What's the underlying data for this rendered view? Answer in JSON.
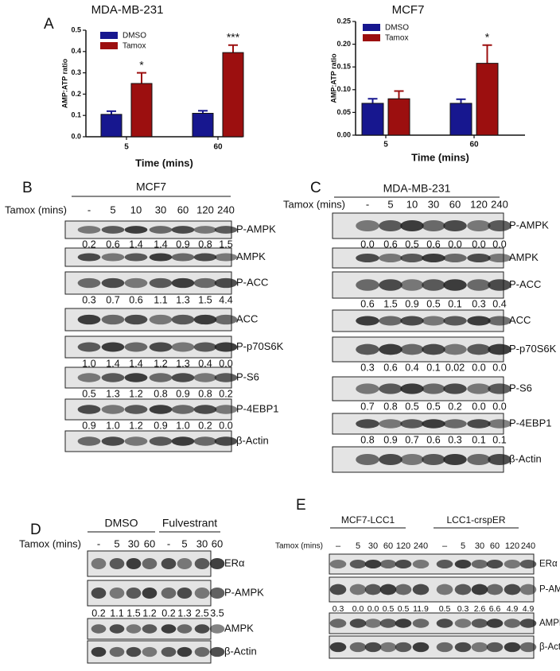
{
  "chart_data": [
    {
      "type": "bar",
      "title": "MDA-MB-231",
      "panel": "A",
      "y_label": "AMP:ATP ratio",
      "x_label": "Time (mins)",
      "categories": [
        "5",
        "60"
      ],
      "series": [
        {
          "name": "DMSO",
          "color": "#17178f",
          "values": [
            0.105,
            0.11
          ],
          "errors": [
            0.015,
            0.012
          ]
        },
        {
          "name": "Tamox",
          "color": "#9c0f0f",
          "values": [
            0.25,
            0.395
          ],
          "errors": [
            0.05,
            0.035
          ],
          "annotations": [
            "*",
            "***"
          ]
        }
      ],
      "ylim": [
        0,
        0.5
      ],
      "yticks": [
        {
          "value": 0,
          "label": "0.0"
        },
        0.1,
        0.2,
        0.3,
        0.4,
        0.5
      ]
    },
    {
      "type": "bar",
      "title": "MCF7",
      "y_label": "AMP:ATP ratio",
      "x_label": "Time (mins)",
      "categories": [
        "5",
        "60"
      ],
      "series": [
        {
          "name": "DMSO",
          "color": "#17178f",
          "values": [
            0.07,
            0.07
          ],
          "errors": [
            0.01,
            0.009
          ]
        },
        {
          "name": "Tamox",
          "color": "#9c0f0f",
          "values": [
            0.08,
            0.158
          ],
          "errors": [
            0.017,
            0.04
          ],
          "annotations": [
            null,
            "*"
          ]
        }
      ],
      "ylim": [
        0,
        0.25
      ],
      "yticks": [
        {
          "value": 0,
          "label": "0.00"
        },
        {
          "value": 0.05,
          "label": "0.05"
        },
        {
          "value": 0.1,
          "label": "0.10"
        },
        {
          "value": 0.15,
          "label": "0.15"
        },
        {
          "value": 0.2,
          "label": "0.20"
        },
        {
          "value": 0.25,
          "label": "0.25"
        }
      ]
    }
  ],
  "blot_panels": [
    {
      "letter": "B",
      "groups": [
        "MCF7"
      ],
      "tamox_label": "Tamox (mins)",
      "lanes": [
        "-",
        "5",
        "10",
        "30",
        "60",
        "120",
        "240"
      ],
      "rows": [
        {
          "name": "P-AMPK",
          "quant": [
            "0.2",
            "0.6",
            "1.4",
            "1.4",
            "0.9",
            "0.8",
            "1.5"
          ]
        },
        {
          "name": "AMPK"
        },
        {
          "name": "P-ACC",
          "quant": [
            "0.3",
            "0.7",
            "0.6",
            "1.1",
            "1.3",
            "1.5",
            "4.4"
          ]
        },
        {
          "name": "ACC"
        },
        {
          "name": "P-p70S6K",
          "quant": [
            "1.0",
            "1.4",
            "1.4",
            "1.2",
            "1.3",
            "0.4",
            "0.0"
          ]
        },
        {
          "name": "P-S6",
          "quant": [
            "0.5",
            "1.3",
            "1.2",
            "0.8",
            "0.9",
            "0.8",
            "0.2"
          ]
        },
        {
          "name": "P-4EBP1",
          "quant": [
            "0.9",
            "1.0",
            "1.2",
            "0.9",
            "1.0",
            "0.2",
            "0.0"
          ]
        },
        {
          "name": "β-Actin"
        }
      ]
    },
    {
      "letter": "C",
      "groups": [
        "MDA-MB-231"
      ],
      "tamox_label": "Tamox (mins)",
      "lanes": [
        "-",
        "5",
        "10",
        "30",
        "60",
        "120",
        "240"
      ],
      "rows": [
        {
          "name": "P-AMPK",
          "quant": [
            "0.0",
            "0.6",
            "0.5",
            "0.6",
            "0.0",
            "0.0",
            "0.0"
          ]
        },
        {
          "name": "AMPK"
        },
        {
          "name": "P-ACC",
          "quant": [
            "0.6",
            "1.5",
            "0.9",
            "0.5",
            "0.1",
            "0.3",
            "0.4"
          ]
        },
        {
          "name": "ACC"
        },
        {
          "name": "P-p70S6K",
          "quant": [
            "0.3",
            "0.6",
            "0.4",
            "0.1",
            "0.02",
            "0.0",
            "0.0"
          ]
        },
        {
          "name": "P-S6",
          "quant": [
            "0.7",
            "0.8",
            "0.5",
            "0.5",
            "0.2",
            "0.0",
            "0.0"
          ]
        },
        {
          "name": "P-4EBP1",
          "quant": [
            "0.8",
            "0.9",
            "0.7",
            "0.6",
            "0.3",
            "0.1",
            "0.1"
          ]
        },
        {
          "name": "β-Actin"
        }
      ]
    },
    {
      "letter": "D",
      "groups": [
        "DMSO",
        "Fulvestrant"
      ],
      "tamox_label": "Tamox (mins)",
      "lanes": [
        "-",
        "5",
        "30",
        "60",
        "-",
        "5",
        "30",
        "60"
      ],
      "rows": [
        {
          "name": "ERα"
        },
        {
          "name": "P-AMPK",
          "quant": [
            "0.2",
            "1.1",
            "1.5",
            "1.2",
            "0.2",
            "1.3",
            "2.5",
            "3.5"
          ]
        },
        {
          "name": "AMPK"
        },
        {
          "name": "β-Actin"
        }
      ]
    },
    {
      "letter": "E",
      "groups": [
        "MCF7-LCC1",
        "LCC1-crspER"
      ],
      "tamox_label": "Tamox (mins)",
      "lanes": [
        "–",
        "5",
        "30",
        "60",
        "120",
        "240",
        "–",
        "5",
        "30",
        "60",
        "120",
        "240"
      ],
      "rows": [
        {
          "name": "ERα"
        },
        {
          "name": "P-AMPK",
          "quant": [
            "0.3",
            "0.0",
            "0.0",
            "0.5",
            "0.5",
            "11.9",
            "0.5",
            "0.3",
            "2.6",
            "6.6",
            "4.9",
            "4.9"
          ]
        },
        {
          "name": "AMPK"
        },
        {
          "name": "β-Actin"
        }
      ]
    }
  ]
}
